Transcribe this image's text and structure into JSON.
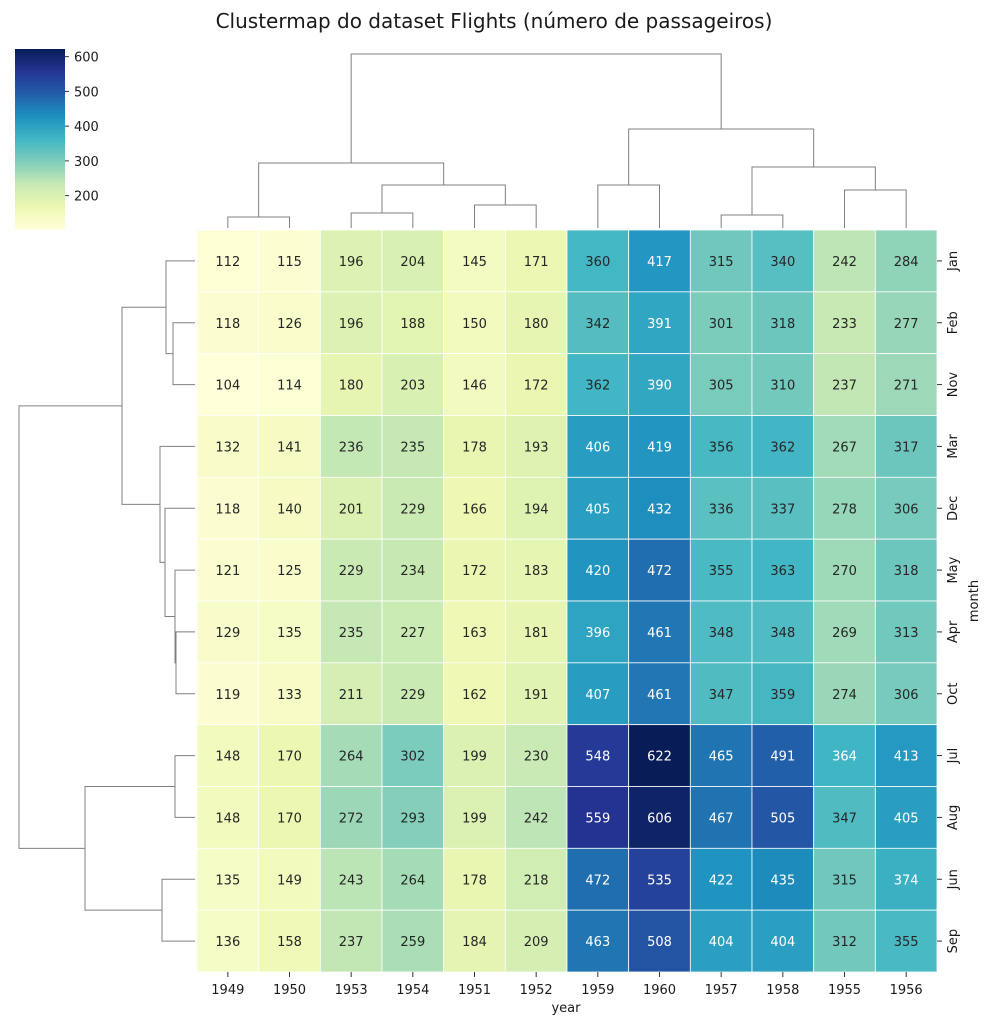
{
  "chart_data": {
    "type": "heatmap",
    "title": "Clustermap do dataset Flights (número de passageiros)",
    "xlabel": "year",
    "ylabel": "month",
    "x_categories": [
      "1949",
      "1950",
      "1953",
      "1954",
      "1951",
      "1952",
      "1959",
      "1960",
      "1957",
      "1958",
      "1955",
      "1956"
    ],
    "y_categories": [
      "Jan",
      "Feb",
      "Nov",
      "Mar",
      "Dec",
      "May",
      "Apr",
      "Oct",
      "Jul",
      "Aug",
      "Jun",
      "Sep"
    ],
    "values": [
      [
        112,
        115,
        196,
        204,
        145,
        171,
        360,
        417,
        315,
        340,
        242,
        284
      ],
      [
        118,
        126,
        196,
        188,
        150,
        180,
        342,
        391,
        301,
        318,
        233,
        277
      ],
      [
        104,
        114,
        180,
        203,
        146,
        172,
        362,
        390,
        305,
        310,
        237,
        271
      ],
      [
        132,
        141,
        236,
        235,
        178,
        193,
        406,
        419,
        356,
        362,
        267,
        317
      ],
      [
        118,
        140,
        201,
        229,
        166,
        194,
        405,
        432,
        336,
        337,
        278,
        306
      ],
      [
        121,
        125,
        229,
        234,
        172,
        183,
        420,
        472,
        355,
        363,
        270,
        318
      ],
      [
        129,
        135,
        235,
        227,
        163,
        181,
        396,
        461,
        348,
        348,
        269,
        313
      ],
      [
        119,
        133,
        211,
        229,
        162,
        191,
        407,
        461,
        347,
        359,
        274,
        306
      ],
      [
        148,
        170,
        264,
        302,
        199,
        230,
        548,
        622,
        465,
        491,
        364,
        413
      ],
      [
        148,
        170,
        272,
        293,
        199,
        242,
        559,
        606,
        467,
        505,
        347,
        405
      ],
      [
        135,
        149,
        243,
        264,
        178,
        218,
        472,
        535,
        422,
        435,
        315,
        374
      ],
      [
        136,
        158,
        237,
        259,
        184,
        209,
        463,
        508,
        404,
        404,
        312,
        355
      ]
    ],
    "colormap": "YlGnBu",
    "color_range": [
      104,
      622
    ],
    "colorbar_ticks": [
      200,
      300,
      400,
      500,
      600
    ],
    "annotations": true,
    "dendrograms": [
      "rows",
      "columns"
    ],
    "grid": false
  }
}
